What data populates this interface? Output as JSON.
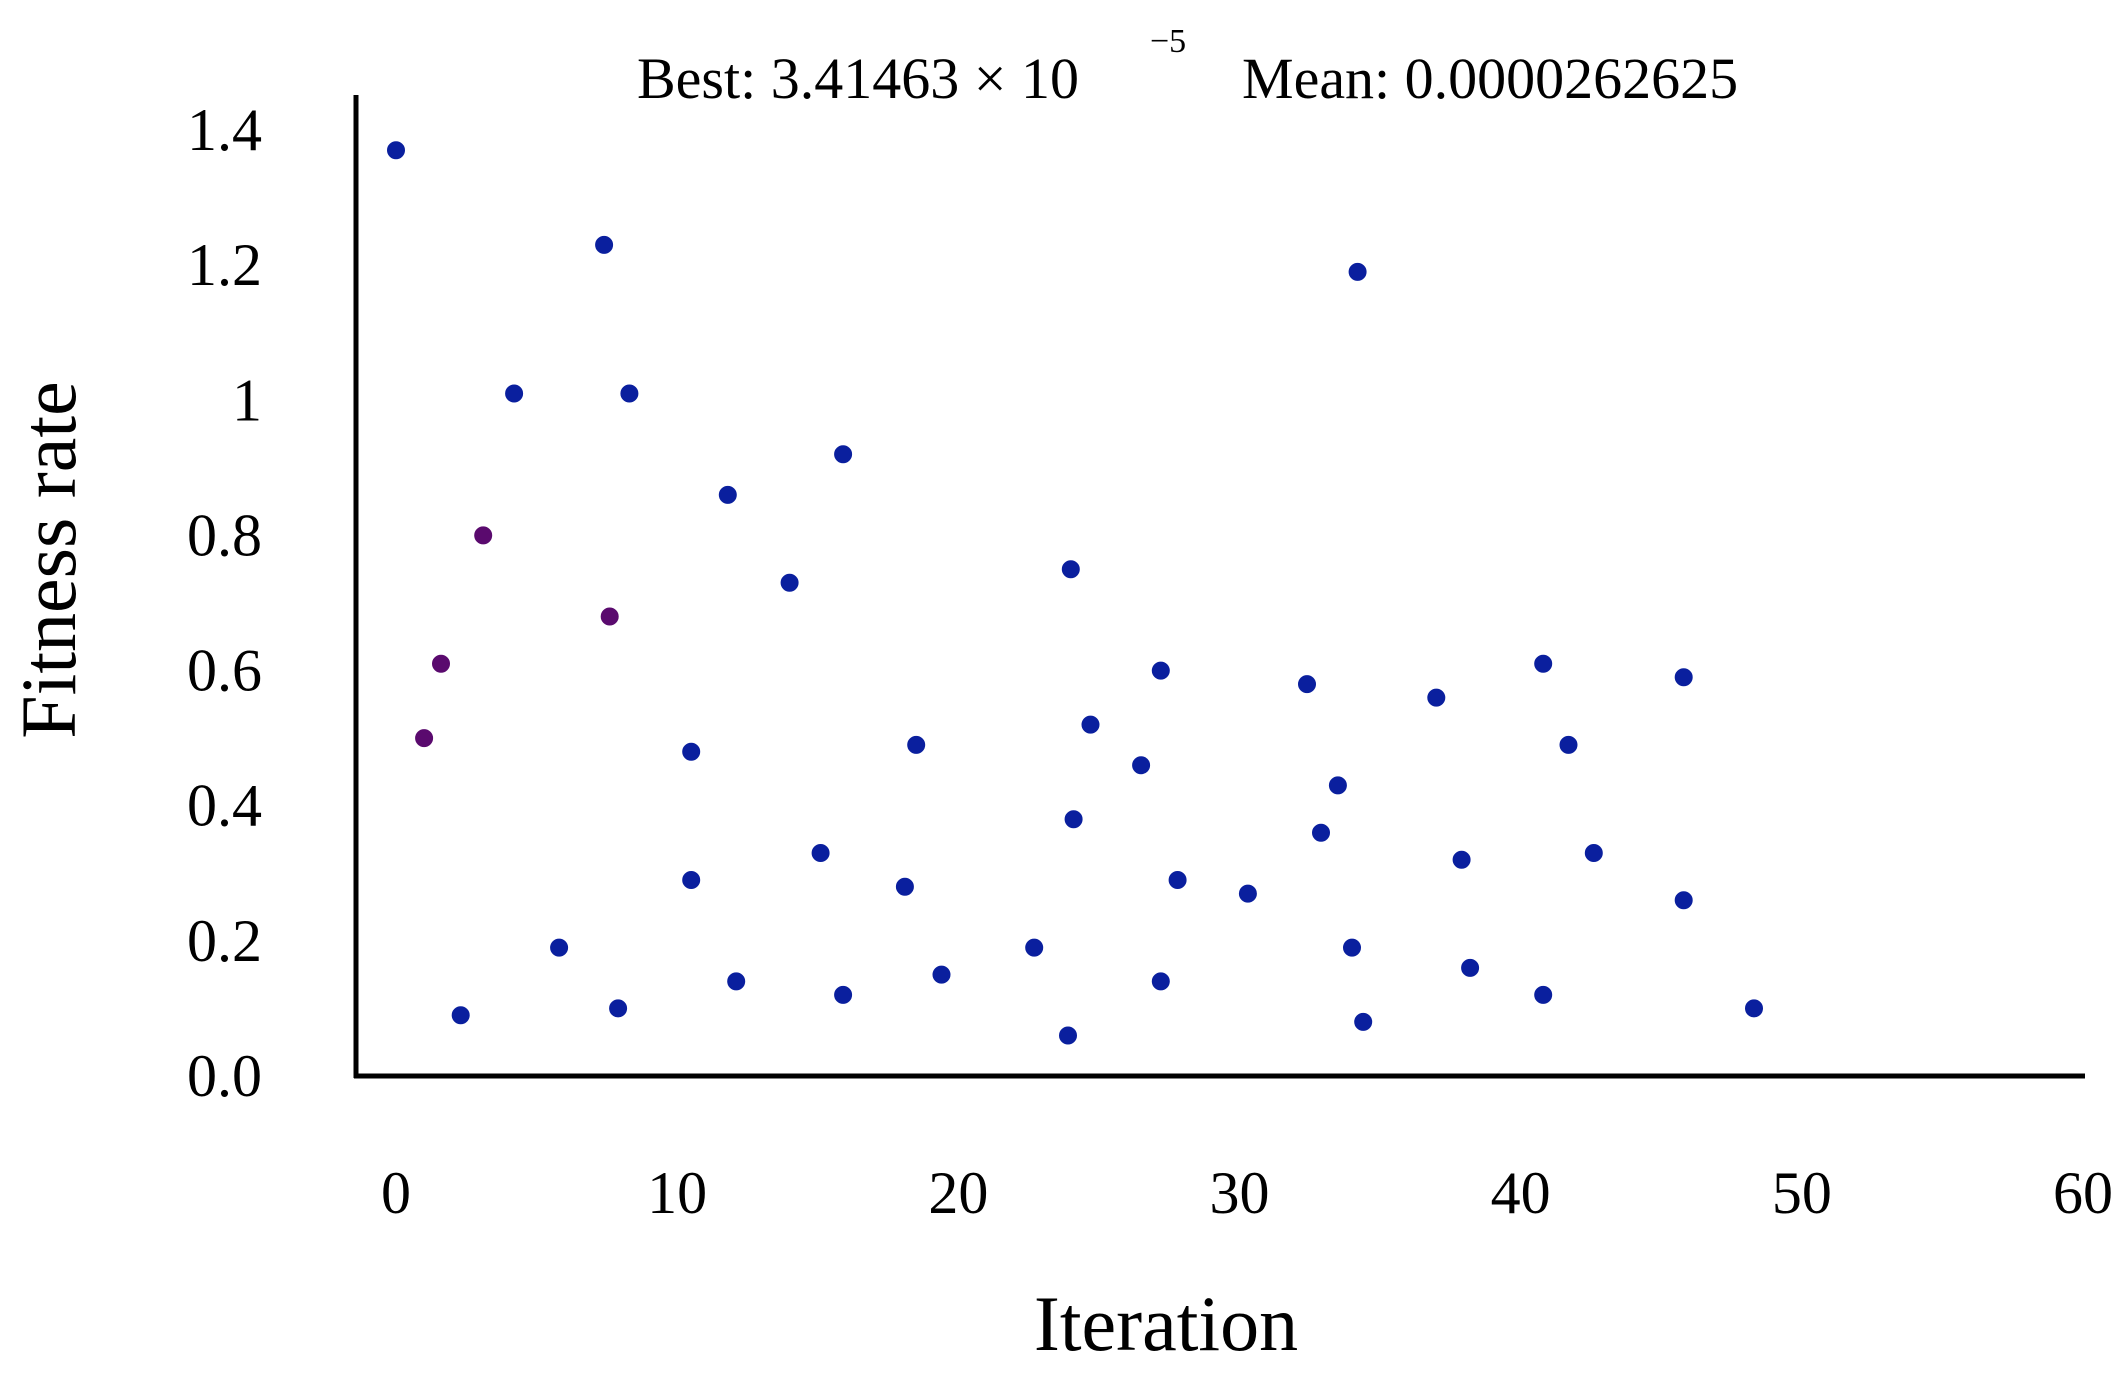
{
  "chart_data": {
    "type": "scatter",
    "title": "",
    "annotation": {
      "best_label": "Best: 3.41463 × 10",
      "best_exponent": "−5",
      "mean_label": "Mean: 0.0000262625"
    },
    "xlabel": "Iteration",
    "ylabel": "Fitness rate",
    "xlim": [
      0,
      60
    ],
    "ylim": [
      0,
      1.4
    ],
    "x_ticks": [
      {
        "value": 0,
        "label": "0"
      },
      {
        "value": 10,
        "label": "10"
      },
      {
        "value": 20,
        "label": "20"
      },
      {
        "value": 30,
        "label": "30"
      },
      {
        "value": 40,
        "label": "40"
      },
      {
        "value": 50,
        "label": "50"
      },
      {
        "value": 60,
        "label": "60"
      }
    ],
    "y_ticks": [
      {
        "value": 0,
        "label": "0.0"
      },
      {
        "value": 0.2,
        "label": "0.2"
      },
      {
        "value": 0.4,
        "label": "0.4"
      },
      {
        "value": 0.6,
        "label": "0.6"
      },
      {
        "value": 0.8,
        "label": "0.8"
      },
      {
        "value": 1.0,
        "label": "1"
      },
      {
        "value": 1.2,
        "label": "1.2"
      },
      {
        "value": 1.4,
        "label": "1.4"
      }
    ],
    "grid": false,
    "legend": "none",
    "colors": {
      "point": "#0a1f9e",
      "early_point": "#5a0a6e",
      "axis": "#000000"
    },
    "series": [
      {
        "points": [
          {
            "x": 0.0,
            "y": 1.37
          },
          {
            "x": 1.0,
            "y": 0.5,
            "early": true
          },
          {
            "x": 1.6,
            "y": 0.61,
            "early": true
          },
          {
            "x": 2.3,
            "y": 0.09
          },
          {
            "x": 3.1,
            "y": 0.8,
            "early": true
          },
          {
            "x": 4.2,
            "y": 1.01
          },
          {
            "x": 5.8,
            "y": 0.19
          },
          {
            "x": 7.4,
            "y": 1.23
          },
          {
            "x": 7.6,
            "y": 0.68,
            "early": true
          },
          {
            "x": 7.9,
            "y": 0.1
          },
          {
            "x": 8.3,
            "y": 1.01
          },
          {
            "x": 10.5,
            "y": 0.48
          },
          {
            "x": 10.5,
            "y": 0.29
          },
          {
            "x": 11.8,
            "y": 0.86
          },
          {
            "x": 12.1,
            "y": 0.14
          },
          {
            "x": 14.0,
            "y": 0.73
          },
          {
            "x": 15.1,
            "y": 0.33
          },
          {
            "x": 15.9,
            "y": 0.92
          },
          {
            "x": 15.9,
            "y": 0.12
          },
          {
            "x": 18.1,
            "y": 0.28
          },
          {
            "x": 18.5,
            "y": 0.49
          },
          {
            "x": 19.4,
            "y": 0.15
          },
          {
            "x": 22.7,
            "y": 0.19
          },
          {
            "x": 23.9,
            "y": 0.06
          },
          {
            "x": 24.0,
            "y": 0.75
          },
          {
            "x": 24.1,
            "y": 0.38
          },
          {
            "x": 24.7,
            "y": 0.52
          },
          {
            "x": 26.5,
            "y": 0.46
          },
          {
            "x": 27.2,
            "y": 0.6
          },
          {
            "x": 27.2,
            "y": 0.14
          },
          {
            "x": 27.8,
            "y": 0.29
          },
          {
            "x": 30.3,
            "y": 0.27
          },
          {
            "x": 32.4,
            "y": 0.58
          },
          {
            "x": 32.9,
            "y": 0.36
          },
          {
            "x": 33.5,
            "y": 0.43
          },
          {
            "x": 34.0,
            "y": 0.19
          },
          {
            "x": 34.2,
            "y": 1.19
          },
          {
            "x": 34.4,
            "y": 0.08
          },
          {
            "x": 37.0,
            "y": 0.56
          },
          {
            "x": 37.9,
            "y": 0.32
          },
          {
            "x": 38.2,
            "y": 0.16
          },
          {
            "x": 40.8,
            "y": 0.61
          },
          {
            "x": 40.8,
            "y": 0.12
          },
          {
            "x": 41.7,
            "y": 0.49
          },
          {
            "x": 42.6,
            "y": 0.33
          },
          {
            "x": 45.8,
            "y": 0.26
          },
          {
            "x": 45.8,
            "y": 0.59
          },
          {
            "x": 48.3,
            "y": 0.1
          }
        ]
      }
    ]
  }
}
